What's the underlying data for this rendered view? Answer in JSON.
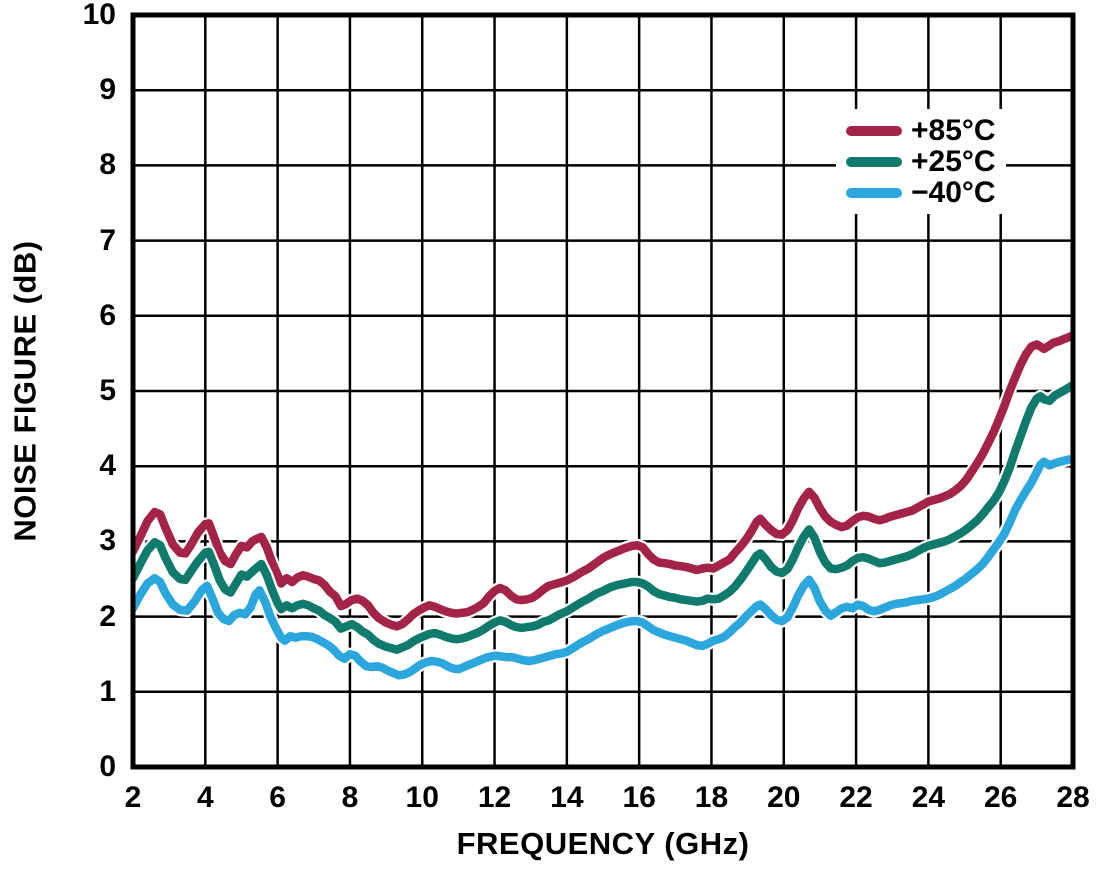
{
  "figure": {
    "x_axis_title": "FREQUENCY (GHz)",
    "y_axis_title": "NOISE FIGURE (dB)",
    "frame_color": "#000000",
    "grid_color": "#000000",
    "background_color": "#ffffff"
  },
  "chart_data": {
    "type": "line",
    "title": "",
    "xlabel": "FREQUENCY (GHz)",
    "ylabel": "NOISE FIGURE (dB)",
    "xlim": [
      2,
      28
    ],
    "ylim": [
      0,
      10
    ],
    "xticks": [
      2,
      4,
      6,
      8,
      10,
      12,
      14,
      16,
      18,
      20,
      22,
      24,
      26,
      28
    ],
    "yticks": [
      0,
      1,
      2,
      3,
      4,
      5,
      6,
      7,
      8,
      9,
      10
    ],
    "grid": true,
    "legend_position": "top-right",
    "series": [
      {
        "name": "+85°C",
        "color": "#A32349",
        "x": [
          2.0,
          2.2,
          2.4,
          2.6,
          2.75,
          2.9,
          3.1,
          3.3,
          3.45,
          3.6,
          3.8,
          4.0,
          4.1,
          4.25,
          4.4,
          4.55,
          4.7,
          4.85,
          5.0,
          5.15,
          5.3,
          5.45,
          5.55,
          5.7,
          5.85,
          6.0,
          6.1,
          6.25,
          6.4,
          6.55,
          6.7,
          6.85,
          7.0,
          7.15,
          7.3,
          7.45,
          7.6,
          7.75,
          7.9,
          8.05,
          8.2,
          8.35,
          8.5,
          8.65,
          8.8,
          9.0,
          9.15,
          9.3,
          9.45,
          9.6,
          9.75,
          9.9,
          10.05,
          10.2,
          10.35,
          10.5,
          10.65,
          10.8,
          10.95,
          11.1,
          11.25,
          11.4,
          11.55,
          11.7,
          11.85,
          12.0,
          12.15,
          12.3,
          12.45,
          12.6,
          12.75,
          12.9,
          13.05,
          13.2,
          13.35,
          13.5,
          13.65,
          13.8,
          14.0,
          14.2,
          14.4,
          14.6,
          14.8,
          15.0,
          15.2,
          15.4,
          15.6,
          15.8,
          15.95,
          16.1,
          16.25,
          16.4,
          16.55,
          16.7,
          16.85,
          17.0,
          17.15,
          17.3,
          17.45,
          17.6,
          17.75,
          17.9,
          18.05,
          18.2,
          18.35,
          18.5,
          18.65,
          18.8,
          18.95,
          19.1,
          19.25,
          19.35,
          19.5,
          19.65,
          19.8,
          19.95,
          20.1,
          20.25,
          20.4,
          20.55,
          20.7,
          20.85,
          21.0,
          21.15,
          21.3,
          21.45,
          21.6,
          21.75,
          21.9,
          22.05,
          22.2,
          22.35,
          22.5,
          22.65,
          22.8,
          22.95,
          23.1,
          23.25,
          23.4,
          23.55,
          23.7,
          23.85,
          24.0,
          24.15,
          24.3,
          24.45,
          24.6,
          24.75,
          24.9,
          25.05,
          25.2,
          25.35,
          25.5,
          25.65,
          25.8,
          25.95,
          26.1,
          26.25,
          26.4,
          26.55,
          26.7,
          26.85,
          27.0,
          27.1,
          27.2,
          27.3,
          27.45,
          27.6,
          27.75,
          27.9,
          28.0
        ],
        "y": [
          2.87,
          3.06,
          3.27,
          3.39,
          3.36,
          3.18,
          2.96,
          2.85,
          2.84,
          2.95,
          3.12,
          3.23,
          3.24,
          3.05,
          2.85,
          2.74,
          2.7,
          2.83,
          2.94,
          2.92,
          3.0,
          3.04,
          3.06,
          2.92,
          2.72,
          2.55,
          2.44,
          2.51,
          2.46,
          2.52,
          2.55,
          2.53,
          2.5,
          2.48,
          2.42,
          2.33,
          2.27,
          2.14,
          2.17,
          2.22,
          2.24,
          2.21,
          2.15,
          2.05,
          1.98,
          1.92,
          1.89,
          1.87,
          1.9,
          1.96,
          2.03,
          2.08,
          2.12,
          2.15,
          2.13,
          2.1,
          2.07,
          2.05,
          2.04,
          2.05,
          2.06,
          2.09,
          2.13,
          2.18,
          2.27,
          2.34,
          2.38,
          2.35,
          2.28,
          2.23,
          2.22,
          2.23,
          2.25,
          2.3,
          2.36,
          2.41,
          2.43,
          2.45,
          2.48,
          2.53,
          2.59,
          2.64,
          2.71,
          2.78,
          2.83,
          2.87,
          2.91,
          2.94,
          2.95,
          2.92,
          2.83,
          2.76,
          2.72,
          2.71,
          2.7,
          2.68,
          2.67,
          2.66,
          2.64,
          2.62,
          2.64,
          2.65,
          2.64,
          2.68,
          2.72,
          2.76,
          2.85,
          2.93,
          3.02,
          3.13,
          3.26,
          3.3,
          3.22,
          3.15,
          3.1,
          3.09,
          3.15,
          3.28,
          3.44,
          3.57,
          3.66,
          3.58,
          3.44,
          3.33,
          3.26,
          3.22,
          3.19,
          3.21,
          3.27,
          3.32,
          3.34,
          3.33,
          3.3,
          3.28,
          3.3,
          3.33,
          3.35,
          3.37,
          3.39,
          3.41,
          3.45,
          3.49,
          3.53,
          3.55,
          3.57,
          3.6,
          3.63,
          3.68,
          3.74,
          3.82,
          3.93,
          4.04,
          4.16,
          4.3,
          4.45,
          4.62,
          4.8,
          5.0,
          5.18,
          5.35,
          5.49,
          5.59,
          5.62,
          5.59,
          5.56,
          5.59,
          5.64,
          5.66,
          5.69,
          5.72,
          5.74
        ]
      },
      {
        "name": "+25°C",
        "color": "#107A6C",
        "x": [
          2.0,
          2.2,
          2.4,
          2.6,
          2.75,
          2.9,
          3.1,
          3.3,
          3.45,
          3.6,
          3.8,
          4.0,
          4.1,
          4.25,
          4.4,
          4.55,
          4.7,
          4.85,
          5.0,
          5.15,
          5.3,
          5.45,
          5.55,
          5.7,
          5.85,
          6.0,
          6.1,
          6.25,
          6.4,
          6.55,
          6.7,
          6.85,
          7.0,
          7.15,
          7.3,
          7.45,
          7.6,
          7.75,
          7.9,
          8.05,
          8.2,
          8.35,
          8.5,
          8.65,
          8.8,
          9.0,
          9.15,
          9.3,
          9.45,
          9.6,
          9.75,
          9.9,
          10.05,
          10.2,
          10.35,
          10.5,
          10.65,
          10.8,
          10.95,
          11.1,
          11.25,
          11.4,
          11.55,
          11.7,
          11.85,
          12.0,
          12.15,
          12.3,
          12.45,
          12.6,
          12.75,
          12.9,
          13.05,
          13.2,
          13.35,
          13.5,
          13.65,
          13.8,
          14.0,
          14.2,
          14.4,
          14.6,
          14.8,
          15.0,
          15.2,
          15.4,
          15.6,
          15.8,
          15.95,
          16.1,
          16.25,
          16.4,
          16.55,
          16.7,
          16.85,
          17.0,
          17.15,
          17.3,
          17.45,
          17.6,
          17.75,
          17.9,
          18.05,
          18.2,
          18.35,
          18.5,
          18.65,
          18.8,
          18.95,
          19.1,
          19.25,
          19.35,
          19.5,
          19.65,
          19.8,
          19.95,
          20.1,
          20.25,
          20.4,
          20.55,
          20.7,
          20.85,
          21.0,
          21.15,
          21.3,
          21.45,
          21.6,
          21.75,
          21.9,
          22.05,
          22.2,
          22.35,
          22.5,
          22.65,
          22.8,
          22.95,
          23.1,
          23.25,
          23.4,
          23.55,
          23.7,
          23.85,
          24.0,
          24.15,
          24.3,
          24.45,
          24.6,
          24.75,
          24.9,
          25.05,
          25.2,
          25.35,
          25.5,
          25.65,
          25.8,
          25.95,
          26.1,
          26.25,
          26.4,
          26.55,
          26.7,
          26.85,
          27.0,
          27.1,
          27.2,
          27.35,
          27.5,
          27.65,
          27.8,
          27.9,
          28.0
        ],
        "y": [
          2.51,
          2.7,
          2.88,
          2.99,
          2.95,
          2.78,
          2.59,
          2.5,
          2.49,
          2.6,
          2.74,
          2.85,
          2.86,
          2.68,
          2.48,
          2.36,
          2.32,
          2.44,
          2.56,
          2.53,
          2.6,
          2.66,
          2.7,
          2.55,
          2.35,
          2.18,
          2.1,
          2.15,
          2.11,
          2.15,
          2.17,
          2.15,
          2.11,
          2.08,
          2.02,
          1.98,
          1.93,
          1.84,
          1.87,
          1.9,
          1.86,
          1.8,
          1.76,
          1.69,
          1.64,
          1.6,
          1.58,
          1.56,
          1.59,
          1.62,
          1.67,
          1.71,
          1.74,
          1.77,
          1.78,
          1.76,
          1.73,
          1.71,
          1.7,
          1.71,
          1.73,
          1.76,
          1.79,
          1.83,
          1.88,
          1.92,
          1.95,
          1.93,
          1.89,
          1.86,
          1.85,
          1.86,
          1.87,
          1.89,
          1.93,
          1.95,
          1.99,
          2.03,
          2.07,
          2.13,
          2.19,
          2.24,
          2.3,
          2.34,
          2.39,
          2.42,
          2.44,
          2.46,
          2.46,
          2.44,
          2.4,
          2.34,
          2.3,
          2.28,
          2.26,
          2.25,
          2.23,
          2.22,
          2.21,
          2.2,
          2.21,
          2.24,
          2.23,
          2.24,
          2.28,
          2.33,
          2.4,
          2.49,
          2.59,
          2.7,
          2.81,
          2.84,
          2.76,
          2.66,
          2.6,
          2.58,
          2.63,
          2.76,
          2.92,
          3.06,
          3.16,
          3.05,
          2.86,
          2.72,
          2.64,
          2.63,
          2.65,
          2.68,
          2.74,
          2.78,
          2.79,
          2.77,
          2.74,
          2.71,
          2.72,
          2.74,
          2.76,
          2.78,
          2.8,
          2.83,
          2.87,
          2.91,
          2.94,
          2.96,
          2.98,
          3.0,
          3.03,
          3.07,
          3.11,
          3.16,
          3.22,
          3.28,
          3.36,
          3.45,
          3.54,
          3.65,
          3.8,
          3.98,
          4.2,
          4.4,
          4.6,
          4.78,
          4.9,
          4.93,
          4.89,
          4.87,
          4.94,
          4.98,
          5.02,
          5.05,
          5.08
        ]
      },
      {
        "name": "−40°C",
        "color": "#2BA7DE",
        "x": [
          2.0,
          2.2,
          2.4,
          2.6,
          2.75,
          2.9,
          3.1,
          3.3,
          3.5,
          3.7,
          3.9,
          4.05,
          4.2,
          4.35,
          4.5,
          4.65,
          4.8,
          4.95,
          5.1,
          5.25,
          5.4,
          5.5,
          5.65,
          5.8,
          5.95,
          6.1,
          6.2,
          6.35,
          6.5,
          6.65,
          6.8,
          6.95,
          7.1,
          7.25,
          7.4,
          7.55,
          7.7,
          7.85,
          8.0,
          8.15,
          8.3,
          8.45,
          8.6,
          8.75,
          8.9,
          9.05,
          9.2,
          9.35,
          9.5,
          9.65,
          9.8,
          9.95,
          10.1,
          10.25,
          10.4,
          10.55,
          10.7,
          10.85,
          11.0,
          11.15,
          11.3,
          11.45,
          11.6,
          11.75,
          11.9,
          12.05,
          12.2,
          12.35,
          12.5,
          12.65,
          12.8,
          12.95,
          13.1,
          13.25,
          13.4,
          13.55,
          13.7,
          13.85,
          14.0,
          14.2,
          14.4,
          14.6,
          14.8,
          15.0,
          15.2,
          15.4,
          15.6,
          15.8,
          15.95,
          16.1,
          16.25,
          16.4,
          16.55,
          16.7,
          16.85,
          17.0,
          17.15,
          17.3,
          17.45,
          17.6,
          17.75,
          17.9,
          18.05,
          18.2,
          18.35,
          18.5,
          18.65,
          18.8,
          18.95,
          19.1,
          19.25,
          19.35,
          19.5,
          19.65,
          19.8,
          19.95,
          20.1,
          20.25,
          20.4,
          20.55,
          20.7,
          20.85,
          21.0,
          21.15,
          21.3,
          21.45,
          21.6,
          21.75,
          21.9,
          22.05,
          22.2,
          22.35,
          22.5,
          22.65,
          22.8,
          22.95,
          23.1,
          23.25,
          23.4,
          23.55,
          23.7,
          23.85,
          24.0,
          24.15,
          24.3,
          24.45,
          24.6,
          24.75,
          24.9,
          25.05,
          25.2,
          25.35,
          25.5,
          25.65,
          25.8,
          25.95,
          26.1,
          26.25,
          26.4,
          26.55,
          26.7,
          26.85,
          27.0,
          27.1,
          27.2,
          27.35,
          27.5,
          27.65,
          27.8,
          27.9,
          28.0
        ],
        "y": [
          2.11,
          2.29,
          2.44,
          2.51,
          2.46,
          2.31,
          2.16,
          2.09,
          2.08,
          2.2,
          2.35,
          2.41,
          2.24,
          2.05,
          1.97,
          1.94,
          2.02,
          2.05,
          2.03,
          2.12,
          2.3,
          2.35,
          2.2,
          2.0,
          1.85,
          1.72,
          1.68,
          1.74,
          1.72,
          1.74,
          1.74,
          1.73,
          1.7,
          1.66,
          1.62,
          1.56,
          1.48,
          1.44,
          1.5,
          1.48,
          1.4,
          1.34,
          1.33,
          1.34,
          1.32,
          1.28,
          1.25,
          1.22,
          1.23,
          1.26,
          1.31,
          1.36,
          1.39,
          1.41,
          1.4,
          1.38,
          1.34,
          1.31,
          1.3,
          1.33,
          1.36,
          1.39,
          1.42,
          1.45,
          1.47,
          1.48,
          1.47,
          1.46,
          1.46,
          1.44,
          1.42,
          1.41,
          1.42,
          1.44,
          1.46,
          1.48,
          1.5,
          1.51,
          1.53,
          1.59,
          1.65,
          1.7,
          1.76,
          1.81,
          1.85,
          1.89,
          1.92,
          1.94,
          1.94,
          1.92,
          1.87,
          1.82,
          1.79,
          1.76,
          1.74,
          1.72,
          1.7,
          1.68,
          1.65,
          1.62,
          1.61,
          1.64,
          1.68,
          1.7,
          1.73,
          1.79,
          1.86,
          1.92,
          2.0,
          2.07,
          2.14,
          2.16,
          2.1,
          2.02,
          1.96,
          1.94,
          1.99,
          2.12,
          2.28,
          2.41,
          2.49,
          2.38,
          2.2,
          2.08,
          2.01,
          2.06,
          2.11,
          2.13,
          2.11,
          2.16,
          2.14,
          2.09,
          2.07,
          2.09,
          2.12,
          2.15,
          2.17,
          2.18,
          2.19,
          2.21,
          2.22,
          2.23,
          2.24,
          2.26,
          2.29,
          2.33,
          2.37,
          2.41,
          2.46,
          2.51,
          2.57,
          2.63,
          2.7,
          2.79,
          2.89,
          2.99,
          3.1,
          3.25,
          3.42,
          3.55,
          3.67,
          3.78,
          3.92,
          4.02,
          4.06,
          4.01,
          4.04,
          4.06,
          4.08,
          4.09,
          4.1
        ]
      }
    ]
  }
}
